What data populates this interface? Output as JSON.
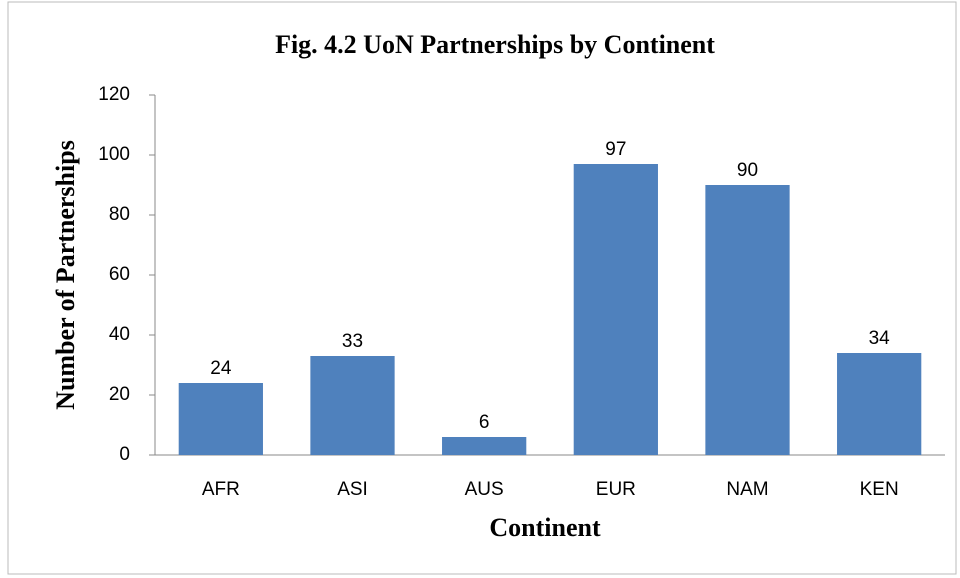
{
  "chart_data": {
    "type": "bar",
    "title": "Fig. 4.2 UoN Partnerships by Continent",
    "x_label": "Continent",
    "y_label": "Number of Partnerships",
    "categories": [
      "AFR",
      "ASI",
      "AUS",
      "EUR",
      "NAM",
      "KEN"
    ],
    "values": [
      24,
      33,
      6,
      97,
      90,
      34
    ],
    "color": "#4f81bd",
    "ylim": [
      0,
      120
    ],
    "yticks": [
      0,
      20,
      40,
      60,
      80,
      100,
      120
    ],
    "grid": false
  }
}
